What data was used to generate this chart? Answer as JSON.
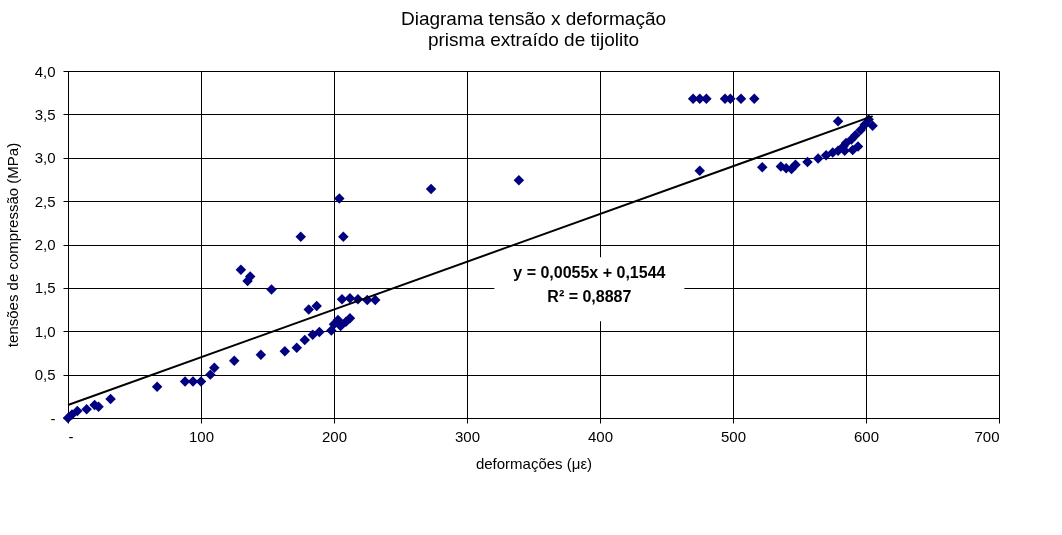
{
  "chart_data": {
    "type": "scatter",
    "title": [
      "Diagrama tensão x deformação",
      "prisma extraído de tijolito"
    ],
    "xlabel": "deformações (με)",
    "ylabel": "tensões de compressão (MPa)",
    "xlim": [
      0,
      700
    ],
    "xticks": [
      {
        "value": 0,
        "label": "-"
      },
      100,
      200,
      300,
      400,
      500,
      600,
      700
    ],
    "ylim": [
      0,
      4
    ],
    "yticks": [
      {
        "value": 0,
        "label": "-"
      },
      {
        "value": 0.5,
        "label": "0,5"
      },
      {
        "value": 1,
        "label": "1,0"
      },
      {
        "value": 1.5,
        "label": "1,5"
      },
      {
        "value": 2,
        "label": "2,0"
      },
      {
        "value": 2.5,
        "label": "2,5"
      },
      {
        "value": 3,
        "label": "3,0"
      },
      {
        "value": 3.5,
        "label": "3,5"
      },
      {
        "value": 4,
        "label": "4,0"
      }
    ],
    "grid": true,
    "marker": "diamond",
    "annotations": [
      "y = 0,0055x + 0,1544",
      "R² = 0,8887"
    ],
    "series": [
      {
        "color": "#000080",
        "x": [
          0,
          3,
          7,
          14,
          20,
          23,
          32,
          67,
          88,
          94,
          100,
          107,
          110,
          125,
          145,
          153,
          130,
          135,
          137,
          163,
          172,
          178,
          181,
          187,
          175,
          184,
          189,
          198,
          200,
          203,
          205,
          209,
          212,
          204,
          207,
          206,
          212,
          218,
          225,
          231,
          273,
          339,
          470,
          475,
          480,
          494,
          498,
          506,
          516,
          475,
          522,
          536,
          540,
          544,
          547,
          556,
          564,
          570,
          575,
          579,
          583,
          584,
          585,
          589,
          590,
          592,
          594,
          596,
          599,
          602,
          605,
          579
        ],
        "values": [
          0,
          0.04,
          0.08,
          0.1,
          0.15,
          0.13,
          0.22,
          0.36,
          0.42,
          0.42,
          0.42,
          0.5,
          0.58,
          0.66,
          0.73,
          1.48,
          1.71,
          1.58,
          1.63,
          0.77,
          0.81,
          0.9,
          1.25,
          1.29,
          2.09,
          0.96,
          0.99,
          1.01,
          1.08,
          1.13,
          1.06,
          1.11,
          1.15,
          2.53,
          2.09,
          1.37,
          1.38,
          1.37,
          1.36,
          1.36,
          2.64,
          2.74,
          3.68,
          3.68,
          3.68,
          3.68,
          3.68,
          3.68,
          3.68,
          2.85,
          2.89,
          2.9,
          2.88,
          2.87,
          2.92,
          2.95,
          2.99,
          3.03,
          3.06,
          3.08,
          3.13,
          3.08,
          3.17,
          3.21,
          3.09,
          3.26,
          3.13,
          3.32,
          3.38,
          3.44,
          3.37,
          3.42
        ]
      },
      {
        "type": "line",
        "marker": "none",
        "color": "#000000",
        "x": [
          0,
          605
        ],
        "values": [
          0.15,
          3.48
        ]
      }
    ]
  }
}
